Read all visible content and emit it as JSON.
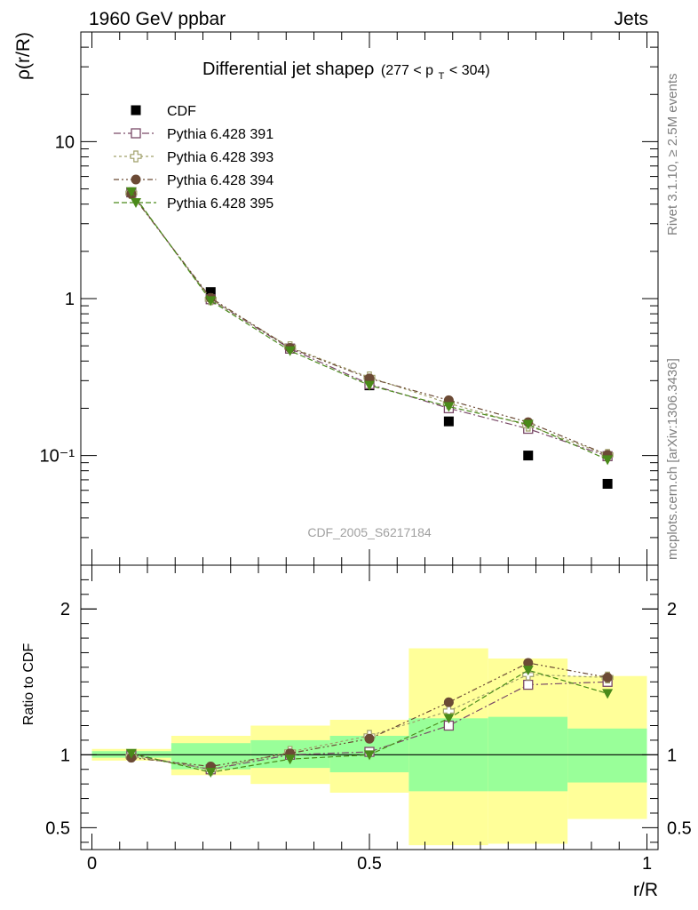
{
  "header": {
    "left": "1960 GeV ppbar",
    "right": "Jets",
    "side_rivet": "Rivet 3.1.10, ≥ 2.5M events",
    "side_mcplots": "mcplots.cern.ch [arXiv:1306.3436]",
    "analysis_id": "CDF_2005_S6217184"
  },
  "chart_data": [
    {
      "type": "scatter",
      "title_main": "Differential jet shapeρ",
      "title_range_pre": "(277 < p",
      "title_range_sub": "T",
      "title_range_post": " < 304)",
      "ylabel": "ρ(r/R)",
      "yscale": "log",
      "ylim": [
        0.02,
        50
      ],
      "xlim": [
        -0.02,
        1.02
      ],
      "yticks": [
        "10",
        "1",
        "10⁻¹"
      ],
      "x": [
        0.071,
        0.214,
        0.357,
        0.5,
        0.643,
        0.786,
        0.929
      ],
      "series": [
        {
          "name": "CDF",
          "marker": "square-filled",
          "color": "#000000",
          "values": [
            4.75,
            1.1,
            0.48,
            0.28,
            0.165,
            0.1,
            0.066
          ]
        },
        {
          "name": "Pythia 6.428 391",
          "marker": "square-open",
          "color": "#7a4a68",
          "values": [
            4.75,
            0.99,
            0.48,
            0.285,
            0.2,
            0.148,
            0.099
          ]
        },
        {
          "name": "Pythia 6.428 393",
          "marker": "cross-open",
          "color": "#a0a06a",
          "values": [
            4.7,
            0.99,
            0.49,
            0.315,
            0.215,
            0.155,
            0.101
          ]
        },
        {
          "name": "Pythia 6.428 394",
          "marker": "circle-filled",
          "color": "#6b4a35",
          "values": [
            4.65,
            1.01,
            0.485,
            0.31,
            0.225,
            0.163,
            0.101
          ]
        },
        {
          "name": "Pythia 6.428 395",
          "marker": "triangle-down-filled",
          "color": "#4a8a1a",
          "values": [
            4.8,
            0.97,
            0.465,
            0.28,
            0.205,
            0.158,
            0.094
          ]
        }
      ]
    },
    {
      "type": "scatter",
      "ylabel": "Ratio to CDF",
      "xlabel": "r/R",
      "ylim": [
        0.35,
        2.3
      ],
      "xlim": [
        -0.02,
        1.02
      ],
      "yticks": [
        "2",
        "1",
        "0.5"
      ],
      "xticks": [
        "0",
        "0.5",
        "1"
      ],
      "bins": [
        {
          "lo": 0.0,
          "hi": 0.143,
          "stat": [
            0.98,
            1.025
          ],
          "total": [
            0.96,
            1.04
          ]
        },
        {
          "lo": 0.143,
          "hi": 0.286,
          "stat": [
            0.9,
            1.08
          ],
          "total": [
            0.86,
            1.13
          ]
        },
        {
          "lo": 0.286,
          "hi": 0.429,
          "stat": [
            0.91,
            1.1
          ],
          "total": [
            0.8,
            1.2
          ]
        },
        {
          "lo": 0.429,
          "hi": 0.571,
          "stat": [
            0.88,
            1.13
          ],
          "total": [
            0.74,
            1.24
          ]
        },
        {
          "lo": 0.571,
          "hi": 0.714,
          "stat": [
            0.75,
            1.25
          ],
          "total": [
            0.38,
            1.73
          ]
        },
        {
          "lo": 0.714,
          "hi": 0.857,
          "stat": [
            0.75,
            1.26
          ],
          "total": [
            0.39,
            1.66
          ]
        },
        {
          "lo": 0.857,
          "hi": 1.0,
          "stat": [
            0.81,
            1.18
          ],
          "total": [
            0.56,
            1.54
          ]
        }
      ],
      "reference": 1,
      "x": [
        0.071,
        0.214,
        0.357,
        0.5,
        0.643,
        0.786,
        0.929
      ],
      "series": [
        {
          "name": "Pythia 6.428 391",
          "values": [
            1.0,
            0.9,
            1.0,
            1.02,
            1.2,
            1.48,
            1.5
          ]
        },
        {
          "name": "Pythia 6.428 393",
          "values": [
            0.99,
            0.9,
            1.02,
            1.13,
            1.3,
            1.55,
            1.53
          ]
        },
        {
          "name": "Pythia 6.428 394",
          "values": [
            0.98,
            0.92,
            1.01,
            1.11,
            1.36,
            1.63,
            1.53
          ]
        },
        {
          "name": "Pythia 6.428 395",
          "values": [
            1.01,
            0.88,
            0.97,
            1.0,
            1.25,
            1.58,
            1.42
          ]
        }
      ]
    }
  ],
  "colors": {
    "stat_band": "#99ff99",
    "total_band": "#ffff99"
  }
}
